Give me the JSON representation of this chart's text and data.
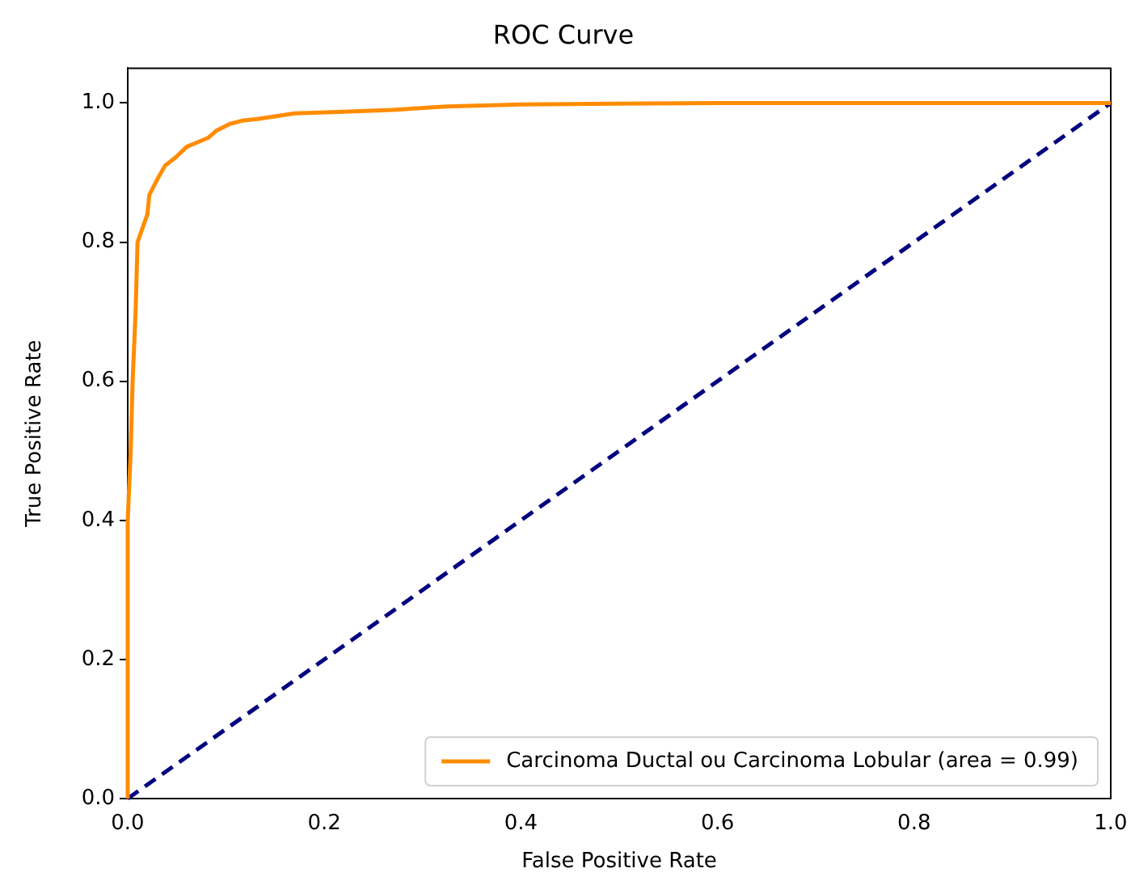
{
  "chart_data": {
    "type": "line",
    "title": "ROC Curve",
    "xlabel": "False Positive Rate",
    "ylabel": "True Positive Rate",
    "xlim": [
      0,
      1
    ],
    "ylim": [
      0,
      1.05
    ],
    "xticks": [
      {
        "value": 0,
        "label": "0.0"
      },
      {
        "value": 0.2,
        "label": "0.2"
      },
      {
        "value": 0.4,
        "label": "0.4"
      },
      {
        "value": 0.6,
        "label": "0.6"
      },
      {
        "value": 0.8,
        "label": "0.8"
      },
      {
        "value": 1,
        "label": "1.0"
      }
    ],
    "yticks": [
      {
        "value": 0,
        "label": "0.0"
      },
      {
        "value": 0.2,
        "label": "0.2"
      },
      {
        "value": 0.4,
        "label": "0.4"
      },
      {
        "value": 0.6,
        "label": "0.6"
      },
      {
        "value": 0.8,
        "label": "0.8"
      },
      {
        "value": 1,
        "label": "1.0"
      }
    ],
    "grid": false,
    "legend": "bottom right",
    "marker": "none",
    "series": [
      {
        "name": "Carcinoma Ductal ou Carcinoma Lobular (area = 0.99)",
        "color": "#ff8c00",
        "line_style": "solid",
        "x": [
          0,
          0,
          0.003,
          0.005,
          0.008,
          0.01,
          0.015,
          0.02,
          0.022,
          0.03,
          0.038,
          0.049,
          0.06,
          0.07,
          0.082,
          0.09,
          0.104,
          0.118,
          0.132,
          0.17,
          0.214,
          0.269,
          0.324,
          0.4,
          0.6,
          0.8,
          1
        ],
        "values": [
          0,
          0.4,
          0.5,
          0.6,
          0.7,
          0.8,
          0.82,
          0.84,
          0.868,
          0.89,
          0.91,
          0.922,
          0.937,
          0.943,
          0.95,
          0.96,
          0.97,
          0.975,
          0.977,
          0.985,
          0.987,
          0.99,
          0.995,
          0.998,
          1,
          1,
          1
        ]
      },
      {
        "color": "#000080",
        "line_style": "dashed",
        "x": [
          0,
          1
        ],
        "values": [
          0,
          1
        ]
      }
    ]
  }
}
